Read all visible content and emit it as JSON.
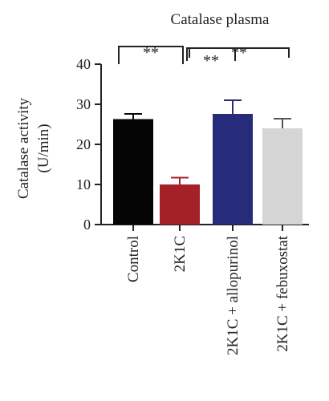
{
  "chart_data": {
    "type": "bar",
    "title": "Catalase plasma",
    "ylabel_line1": "Catalase activity",
    "ylabel_line2": "(U/min)",
    "xlabel": "",
    "ylim": [
      0,
      40
    ],
    "yticks": [
      0,
      10,
      20,
      30,
      40
    ],
    "categories": [
      "Control",
      "2K1C",
      "2K1C + allopurinol",
      "2K1C + febuxostat"
    ],
    "values": [
      26.3,
      10.0,
      27.6,
      24.0
    ],
    "errors": [
      1.3,
      1.7,
      3.4,
      2.4
    ],
    "colors": [
      "#050505",
      "#a32127",
      "#262b7a",
      "#d5d5d5"
    ],
    "significance": [
      {
        "from": 0,
        "to": 1,
        "label": "**"
      },
      {
        "from": 1,
        "to": 2,
        "label": "**"
      },
      {
        "from": 1,
        "to": 3,
        "label": "**"
      }
    ],
    "grid": false,
    "legend": "none"
  }
}
